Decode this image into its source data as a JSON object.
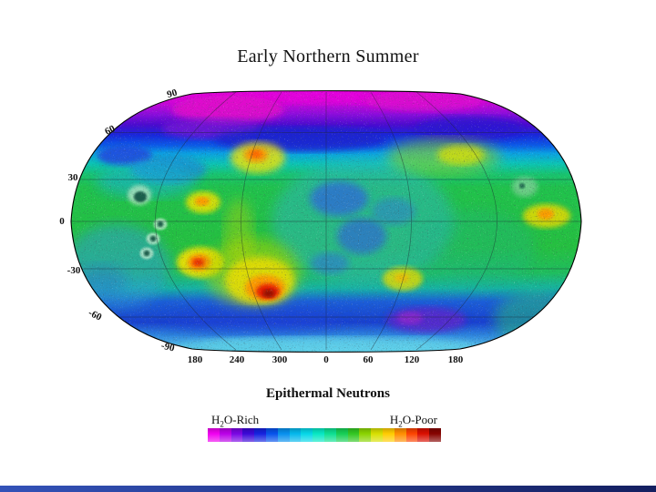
{
  "slide": {
    "title": "Early Northern Summer",
    "subtitle": "Epithermal Neutrons"
  },
  "map": {
    "projection": "robinson-ellipse",
    "lat_labels": [
      "90",
      "60",
      "30",
      "0",
      "-30",
      "-60",
      "-90"
    ],
    "lon_labels": [
      "180",
      "240",
      "300",
      "0",
      "60",
      "120",
      "180"
    ],
    "feature_colors": {
      "north_polar_cap": "#d904d2",
      "north_purple_band": "#7d12d6",
      "high_latitude_blue_band": "#1b23cf",
      "midlatitude_green": "#22c04a",
      "central_water_rich_blue": "#2e60e0",
      "dry_hotspot_red": "#e51500",
      "dry_hotspot_dark_red": "#8c0a00",
      "south_blue_band": "#1c42da",
      "south_purple_patch": "#5b28cc",
      "bottom_cyan_rim": "#5ed0e8"
    }
  },
  "colorbar": {
    "rich": {
      "prefix": "H",
      "sub": "2",
      "suffix": "O-Rich"
    },
    "poor": {
      "prefix": "H",
      "sub": "2",
      "suffix": "O-Poor"
    },
    "colors": [
      "#f000f0",
      "#bb00e8",
      "#7a06e4",
      "#3c08d8",
      "#1522e0",
      "#0653ec",
      "#0790ee",
      "#04b8ec",
      "#05d8e8",
      "#06e8c4",
      "#0ce092",
      "#16d055",
      "#32c722",
      "#8ad400",
      "#d8e000",
      "#ffcc00",
      "#ff8e00",
      "#fc4400",
      "#d90f00",
      "#860300"
    ]
  },
  "footer": {
    "gradient": [
      "#3352b8",
      "#141f60"
    ]
  }
}
